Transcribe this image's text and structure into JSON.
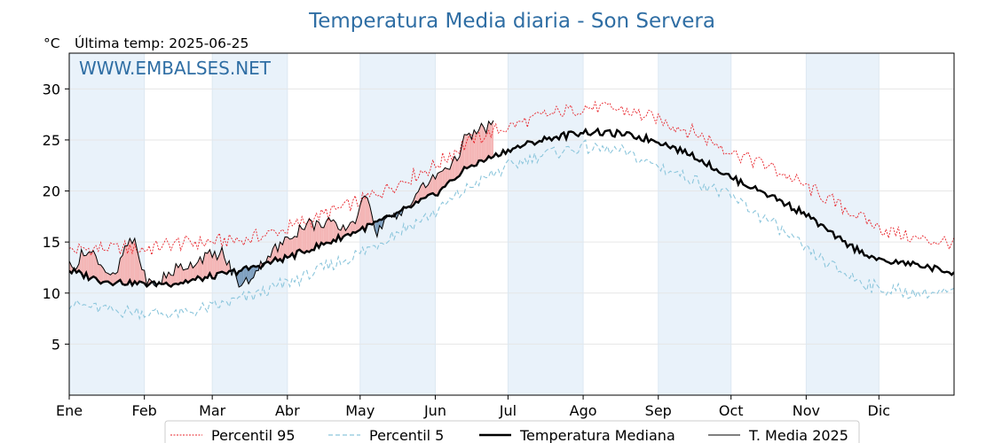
{
  "chart_data": {
    "type": "line",
    "title": "Temperatura Media diaria - Son Servera",
    "unit_label": "°C",
    "last_temp_label": "Última temp: 2025-06-25",
    "watermark": "WWW.EMBALSES.NET",
    "ylim": [
      0,
      33.5
    ],
    "y_ticks": [
      5,
      10,
      15,
      20,
      25,
      30
    ],
    "x_day_range": [
      1,
      366
    ],
    "months": [
      {
        "label": "Ene",
        "day": 1
      },
      {
        "label": "Feb",
        "day": 32
      },
      {
        "label": "Mar",
        "day": 60
      },
      {
        "label": "Abr",
        "day": 91
      },
      {
        "label": "May",
        "day": 121
      },
      {
        "label": "Jun",
        "day": 152
      },
      {
        "label": "Jul",
        "day": 182
      },
      {
        "label": "Ago",
        "day": 213
      },
      {
        "label": "Sep",
        "day": 244
      },
      {
        "label": "Oct",
        "day": 274
      },
      {
        "label": "Nov",
        "day": 305
      },
      {
        "label": "Dic",
        "day": 335
      }
    ],
    "grid": true,
    "legend_position": "bottom",
    "colors": {
      "p95": "#e8232a",
      "p5": "#8cc6dc",
      "median": "#000000",
      "current": "#000000",
      "above_fill": "#f4b6b6",
      "below_fill": "#7e9fbf",
      "band": "#e9f2fa",
      "title": "#2f6ea4"
    },
    "series": [
      {
        "name": "Percentil 95",
        "style": "dotted-red",
        "days": [
          1,
          15,
          32,
          46,
          60,
          75,
          91,
          105,
          121,
          135,
          152,
          166,
          182,
          196,
          213,
          228,
          244,
          259,
          274,
          290,
          305,
          320,
          335,
          350,
          366
        ],
        "values": [
          14.2,
          14.4,
          14.3,
          14.9,
          15.0,
          15.3,
          16.3,
          17.6,
          19.0,
          20.6,
          22.5,
          24.9,
          26.3,
          27.3,
          28.2,
          28.0,
          27.0,
          25.7,
          23.9,
          22.4,
          20.4,
          18.4,
          16.4,
          15.3,
          14.9
        ]
      },
      {
        "name": "Percentil 5",
        "style": "dashed-lightblue",
        "days": [
          1,
          15,
          32,
          46,
          60,
          75,
          91,
          105,
          121,
          135,
          152,
          166,
          182,
          196,
          213,
          228,
          244,
          259,
          274,
          290,
          305,
          320,
          335,
          350,
          366
        ],
        "values": [
          9.0,
          8.4,
          8.1,
          7.9,
          8.6,
          9.6,
          11.0,
          12.3,
          13.9,
          15.8,
          17.9,
          20.4,
          22.4,
          23.6,
          24.3,
          23.9,
          22.4,
          21.1,
          19.4,
          17.0,
          14.2,
          12.0,
          10.4,
          10.0,
          10.0
        ]
      },
      {
        "name": "Temperatura Mediana",
        "style": "thick-black",
        "days": [
          1,
          15,
          32,
          46,
          60,
          75,
          91,
          105,
          121,
          135,
          152,
          166,
          182,
          196,
          213,
          228,
          244,
          259,
          274,
          290,
          305,
          320,
          335,
          350,
          366
        ],
        "values": [
          12.2,
          11.2,
          10.9,
          11.0,
          11.6,
          12.4,
          13.5,
          14.7,
          16.2,
          17.6,
          19.7,
          22.4,
          24.0,
          25.0,
          25.8,
          25.6,
          24.9,
          23.4,
          21.3,
          19.6,
          17.7,
          15.0,
          13.2,
          12.8,
          12.0
        ]
      },
      {
        "name": "T. Media 2025",
        "style": "thin-black",
        "days": [
          1,
          4,
          8,
          12,
          16,
          20,
          24,
          28,
          32,
          36,
          40,
          44,
          48,
          52,
          56,
          60,
          64,
          68,
          72,
          76,
          80,
          84,
          88,
          92,
          96,
          100,
          104,
          108,
          112,
          116,
          120,
          124,
          128,
          132,
          136,
          140,
          144,
          148,
          152,
          156,
          160,
          164,
          168,
          172,
          176
        ],
        "values": [
          12.6,
          12.9,
          14.2,
          13.6,
          12.3,
          11.4,
          14.4,
          15.2,
          11.6,
          10.6,
          11.5,
          12.2,
          12.6,
          12.9,
          13.6,
          13.6,
          13.9,
          12.2,
          10.6,
          11.6,
          12.8,
          13.9,
          14.6,
          15.6,
          16.3,
          16.9,
          16.6,
          17.2,
          16.0,
          16.6,
          17.6,
          19.9,
          15.7,
          17.7,
          17.1,
          18.4,
          19.7,
          20.6,
          21.3,
          22.3,
          22.9,
          24.9,
          25.6,
          26.1,
          26.6
        ]
      }
    ],
    "legend": [
      {
        "label": "Percentil 95",
        "style": "dotted-red"
      },
      {
        "label": "Percentil 5",
        "style": "dashed-lightblue"
      },
      {
        "label": "Temperatura Mediana",
        "style": "thick-black"
      },
      {
        "label": "T. Media 2025",
        "style": "thin-black"
      }
    ]
  }
}
